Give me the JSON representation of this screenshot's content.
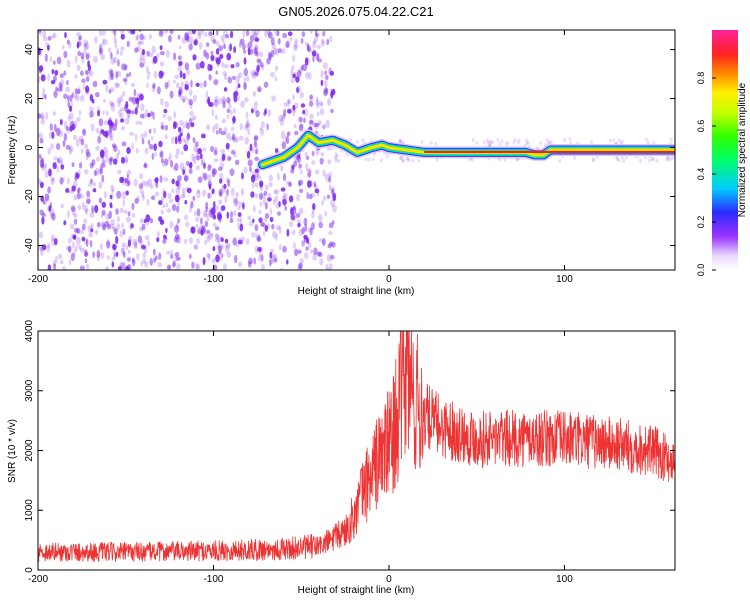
{
  "title": "GN05.2026.075.04.22.C21",
  "colors": {
    "snr_line": "#ee3333",
    "dots": "#7a22ee",
    "background": "#ffffff"
  },
  "chart_data": [
    {
      "type": "heatmap",
      "title": "GN05.2026.075.04.22.C21",
      "xlabel": "Height of straight line (km)",
      "ylabel": "Frequency (Hz)",
      "xlim": [
        -200,
        163
      ],
      "ylim": [
        -50,
        48
      ],
      "xticks": [
        -200,
        -100,
        0,
        100
      ],
      "yticks": [
        -40,
        -20,
        0,
        20,
        40
      ],
      "tone_track": {
        "x": [
          -72,
          -60,
          -52,
          -46,
          -40,
          -32,
          -25,
          -18,
          -10,
          -4,
          0,
          10,
          20,
          40,
          60,
          78,
          83,
          88,
          92,
          100,
          130,
          163
        ],
        "y": [
          -7,
          -4,
          0,
          5,
          2,
          3,
          1,
          -2,
          0,
          1,
          0,
          -1,
          -2,
          -2,
          -2,
          -2,
          -3,
          -3,
          -1,
          -1,
          -1,
          -1
        ],
        "peak_amplitude": 0.95
      },
      "noise_region_x": [
        -200,
        -33
      ],
      "colorbar": {
        "label": "Normalized spectral amplitude",
        "range": [
          0,
          1
        ],
        "ticks": [
          "0.0",
          "0.2",
          "0.4",
          "0.6",
          "0.8"
        ],
        "tick_values": [
          0.0,
          0.2,
          0.4,
          0.6,
          0.8
        ]
      }
    },
    {
      "type": "line",
      "xlabel": "Height of straight line (km)",
      "ylabel": "SNR (10 * v/v)",
      "xlim": [
        -200,
        163
      ],
      "ylim": [
        0,
        4000
      ],
      "xticks": [
        -200,
        -100,
        0,
        100
      ],
      "yticks": [
        0,
        1000,
        2000,
        3000,
        4000
      ],
      "series": [
        {
          "name": "SNR",
          "x": [
            -200,
            -150,
            -100,
            -60,
            -40,
            -30,
            -25,
            -20,
            -15,
            -10,
            -5,
            0,
            5,
            10,
            15,
            20,
            30,
            50,
            80,
            100,
            130,
            150,
            163
          ],
          "y": [
            300,
            300,
            320,
            350,
            400,
            550,
            650,
            900,
            1300,
            1600,
            1900,
            2100,
            2600,
            3300,
            2800,
            2600,
            2400,
            2200,
            2200,
            2200,
            2100,
            2000,
            1800
          ]
        }
      ]
    }
  ]
}
